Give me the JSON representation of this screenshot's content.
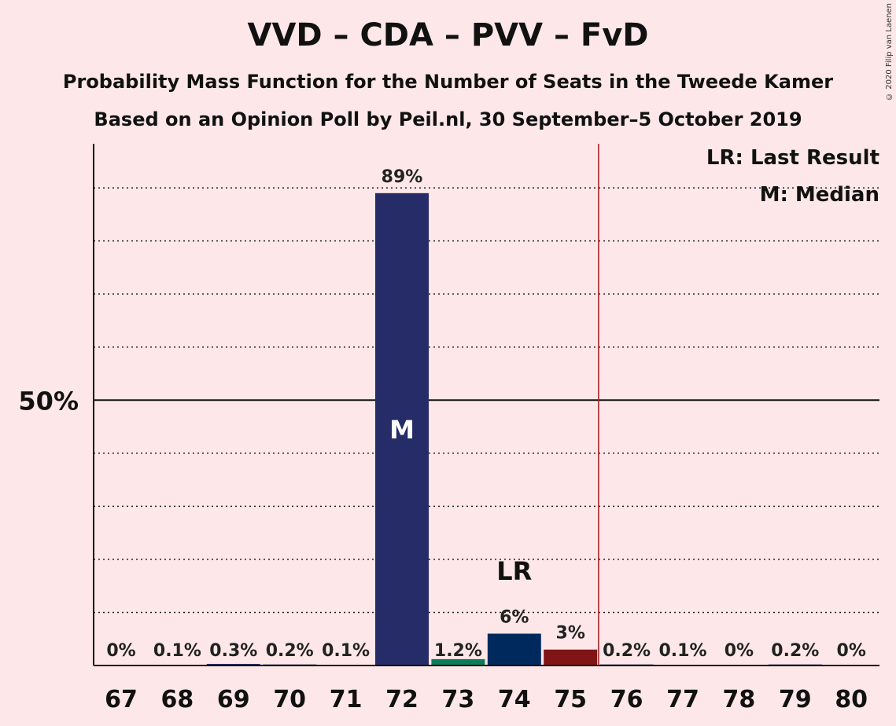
{
  "title": "VVD – CDA – PVV – FvD",
  "subtitle1": "Probability Mass Function for the Number of Seats in the Tweede Kamer",
  "subtitle2": "Based on an Opinion Poll by Peil.nl, 30 September–5 October 2019",
  "copyright": "© 2020 Filip van Laenen",
  "legend": {
    "lr": "LR: Last Result",
    "m": "M: Median"
  },
  "chart_data": {
    "type": "bar",
    "categories": [
      "67",
      "68",
      "69",
      "70",
      "71",
      "72",
      "73",
      "74",
      "75",
      "76",
      "77",
      "78",
      "79",
      "80"
    ],
    "values": [
      0,
      0.1,
      0.3,
      0.2,
      0.1,
      89,
      1.2,
      6,
      3,
      0.2,
      0.1,
      0,
      0.2,
      0
    ],
    "labels": [
      "0%",
      "0.1%",
      "0.3%",
      "0.2%",
      "0.1%",
      "89%",
      "1.2%",
      "6%",
      "3%",
      "0.2%",
      "0.1%",
      "0%",
      "0.2%",
      "0%"
    ],
    "colors": [
      "#262C68",
      "#262C68",
      "#262C68",
      "#262C68",
      "#262C68",
      "#262C68",
      "#0B7C5A",
      "#002A5E",
      "#801517",
      "#262C68",
      "#262C68",
      "#262C68",
      "#262C68",
      "#262C68"
    ],
    "ylim": [
      0,
      97
    ],
    "ytick_label": "50%",
    "ytick_value": 50,
    "gridlines": [
      10,
      20,
      30,
      40,
      60,
      70,
      80,
      90
    ],
    "median_category": "72",
    "median_marker": "M",
    "last_result_category": "74",
    "last_result_marker": "LR",
    "majority_line_after": "75",
    "majority_line_color": "#A01C24"
  }
}
